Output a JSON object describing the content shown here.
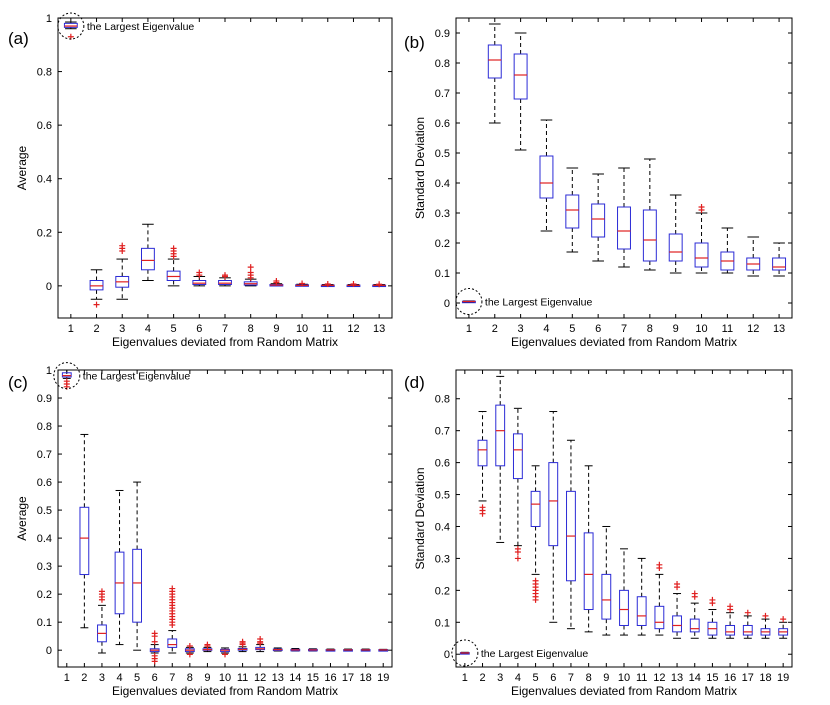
{
  "chart_data": [
    {
      "type": "box",
      "panel_label": "(a)",
      "xlabel": "Eigenvalues deviated from Random Matrix",
      "ylabel": "Average",
      "ylim": [
        -0.12,
        1.0
      ],
      "yticks": [
        0,
        0.2,
        0.4,
        0.6,
        0.8,
        1
      ],
      "ytick_labels": [
        "0",
        "0.2",
        "0.4",
        "0.6",
        "0.8",
        "1"
      ],
      "categories": [
        "1",
        "2",
        "3",
        "4",
        "5",
        "6",
        "7",
        "8",
        "9",
        "10",
        "11",
        "12",
        "13"
      ],
      "annotation": "the Largest Eigenvalue",
      "colors": {
        "box": "#2b2bd6",
        "median": "#e02020",
        "whisker": "#000000",
        "outlier": "#e02020"
      },
      "boxes": [
        {
          "cat": "1",
          "whislo": 0.96,
          "q1": 0.965,
          "med": 0.97,
          "q3": 0.98,
          "whishi": 0.985,
          "fliers": [
            0.93
          ]
        },
        {
          "cat": "2",
          "whislo": -0.05,
          "q1": -0.015,
          "med": 0.0,
          "q3": 0.02,
          "whishi": 0.06,
          "fliers": [
            -0.07
          ]
        },
        {
          "cat": "3",
          "whislo": -0.05,
          "q1": -0.005,
          "med": 0.015,
          "q3": 0.035,
          "whishi": 0.1,
          "fliers": [
            0.13,
            0.14,
            0.15
          ]
        },
        {
          "cat": "4",
          "whislo": 0.02,
          "q1": 0.06,
          "med": 0.095,
          "q3": 0.14,
          "whishi": 0.23,
          "fliers": []
        },
        {
          "cat": "5",
          "whislo": 0.0,
          "q1": 0.02,
          "med": 0.035,
          "q3": 0.055,
          "whishi": 0.1,
          "fliers": [
            0.11,
            0.12,
            0.13,
            0.14
          ]
        },
        {
          "cat": "6",
          "whislo": 0.0,
          "q1": 0.005,
          "med": 0.01,
          "q3": 0.02,
          "whishi": 0.035,
          "fliers": [
            0.04,
            0.05
          ]
        },
        {
          "cat": "7",
          "whislo": 0.0,
          "q1": 0.005,
          "med": 0.01,
          "q3": 0.02,
          "whishi": 0.03,
          "fliers": [
            0.035,
            0.04
          ]
        },
        {
          "cat": "8",
          "whislo": 0.0,
          "q1": 0.003,
          "med": 0.008,
          "q3": 0.015,
          "whishi": 0.025,
          "fliers": [
            0.03,
            0.04,
            0.05,
            0.07
          ]
        },
        {
          "cat": "9",
          "whislo": 0.0,
          "q1": 0.001,
          "med": 0.003,
          "q3": 0.005,
          "whishi": 0.008,
          "fliers": [
            0.012,
            0.018
          ]
        },
        {
          "cat": "10",
          "whislo": 0.0,
          "q1": 0.001,
          "med": 0.002,
          "q3": 0.004,
          "whishi": 0.006,
          "fliers": [
            0.009
          ]
        },
        {
          "cat": "11",
          "whislo": 0.0,
          "q1": 0.001,
          "med": 0.002,
          "q3": 0.003,
          "whishi": 0.005,
          "fliers": [
            0.007
          ]
        },
        {
          "cat": "12",
          "whislo": 0.0,
          "q1": 0.001,
          "med": 0.002,
          "q3": 0.003,
          "whishi": 0.005,
          "fliers": [
            0.007
          ]
        },
        {
          "cat": "13",
          "whislo": 0.0,
          "q1": 0.001,
          "med": 0.002,
          "q3": 0.003,
          "whishi": 0.005,
          "fliers": [
            0.006
          ]
        }
      ]
    },
    {
      "type": "box",
      "panel_label": "(b)",
      "xlabel": "Eigenvalues deviated from Random Matrix",
      "ylabel": "Standard Deviation",
      "ylim": [
        -0.05,
        0.95
      ],
      "yticks": [
        0,
        0.1,
        0.2,
        0.3,
        0.4,
        0.5,
        0.6,
        0.7,
        0.8,
        0.9
      ],
      "ytick_labels": [
        "0",
        "0.1",
        "0.2",
        "0.3",
        "0.4",
        "0.5",
        "0.6",
        "0.7",
        "0.8",
        "0.9"
      ],
      "categories": [
        "1",
        "2",
        "3",
        "4",
        "5",
        "6",
        "7",
        "8",
        "9",
        "10",
        "11",
        "12",
        "13"
      ],
      "annotation": "the Largest Eigenvalue",
      "colors": {
        "box": "#2b2bd6",
        "median": "#e02020",
        "whisker": "#000000",
        "outlier": "#e02020"
      },
      "boxes": [
        {
          "cat": "1",
          "whislo": 0.003,
          "q1": 0.004,
          "med": 0.005,
          "q3": 0.006,
          "whishi": 0.007,
          "fliers": []
        },
        {
          "cat": "2",
          "whislo": 0.6,
          "q1": 0.75,
          "med": 0.81,
          "q3": 0.86,
          "whishi": 0.93,
          "fliers": []
        },
        {
          "cat": "3",
          "whislo": 0.51,
          "q1": 0.68,
          "med": 0.76,
          "q3": 0.83,
          "whishi": 0.9,
          "fliers": []
        },
        {
          "cat": "4",
          "whislo": 0.24,
          "q1": 0.35,
          "med": 0.4,
          "q3": 0.49,
          "whishi": 0.61,
          "fliers": []
        },
        {
          "cat": "5",
          "whislo": 0.17,
          "q1": 0.25,
          "med": 0.31,
          "q3": 0.36,
          "whishi": 0.45,
          "fliers": []
        },
        {
          "cat": "6",
          "whislo": 0.14,
          "q1": 0.22,
          "med": 0.28,
          "q3": 0.33,
          "whishi": 0.43,
          "fliers": []
        },
        {
          "cat": "7",
          "whislo": 0.12,
          "q1": 0.18,
          "med": 0.24,
          "q3": 0.32,
          "whishi": 0.45,
          "fliers": []
        },
        {
          "cat": "8",
          "whislo": 0.11,
          "q1": 0.14,
          "med": 0.21,
          "q3": 0.31,
          "whishi": 0.48,
          "fliers": []
        },
        {
          "cat": "9",
          "whislo": 0.1,
          "q1": 0.14,
          "med": 0.17,
          "q3": 0.23,
          "whishi": 0.36,
          "fliers": []
        },
        {
          "cat": "10",
          "whislo": 0.1,
          "q1": 0.12,
          "med": 0.15,
          "q3": 0.2,
          "whishi": 0.3,
          "fliers": [
            0.31,
            0.32
          ]
        },
        {
          "cat": "11",
          "whislo": 0.1,
          "q1": 0.11,
          "med": 0.14,
          "q3": 0.17,
          "whishi": 0.25,
          "fliers": []
        },
        {
          "cat": "12",
          "whislo": 0.09,
          "q1": 0.11,
          "med": 0.13,
          "q3": 0.15,
          "whishi": 0.22,
          "fliers": []
        },
        {
          "cat": "13",
          "whislo": 0.09,
          "q1": 0.11,
          "med": 0.12,
          "q3": 0.15,
          "whishi": 0.2,
          "fliers": []
        }
      ]
    },
    {
      "type": "box",
      "panel_label": "(c)",
      "xlabel": "Eigenvalues deviated from Random Matrix",
      "ylabel": "Average",
      "ylim": [
        -0.06,
        1.0
      ],
      "yticks": [
        0,
        0.1,
        0.2,
        0.3,
        0.4,
        0.5,
        0.6,
        0.7,
        0.8,
        0.9,
        1
      ],
      "ytick_labels": [
        "0",
        "0.1",
        "0.2",
        "0.3",
        "0.4",
        "0.5",
        "0.6",
        "0.7",
        "0.8",
        "0.9",
        "1"
      ],
      "categories": [
        "1",
        "2",
        "3",
        "4",
        "5",
        "6",
        "7",
        "8",
        "9",
        "10",
        "11",
        "12",
        "13",
        "14",
        "15",
        "16",
        "17",
        "18",
        "19"
      ],
      "annotation": "the Largest Eigenvalue",
      "colors": {
        "box": "#2b2bd6",
        "median": "#e02020",
        "whisker": "#000000",
        "outlier": "#e02020"
      },
      "boxes": [
        {
          "cat": "1",
          "whislo": 0.97,
          "q1": 0.975,
          "med": 0.98,
          "q3": 0.99,
          "whishi": 1.0,
          "fliers": [
            0.94,
            0.95,
            0.96
          ]
        },
        {
          "cat": "2",
          "whislo": 0.08,
          "q1": 0.27,
          "med": 0.4,
          "q3": 0.51,
          "whishi": 0.77,
          "fliers": []
        },
        {
          "cat": "3",
          "whislo": -0.01,
          "q1": 0.03,
          "med": 0.06,
          "q3": 0.09,
          "whishi": 0.16,
          "fliers": [
            0.18,
            0.19,
            0.2,
            0.21
          ]
        },
        {
          "cat": "4",
          "whislo": 0.02,
          "q1": 0.13,
          "med": 0.24,
          "q3": 0.35,
          "whishi": 0.57,
          "fliers": []
        },
        {
          "cat": "5",
          "whislo": 0.0,
          "q1": 0.1,
          "med": 0.24,
          "q3": 0.36,
          "whishi": 0.6,
          "fliers": []
        },
        {
          "cat": "6",
          "whislo": -0.01,
          "q1": -0.005,
          "med": 0.0,
          "q3": 0.005,
          "whishi": 0.02,
          "fliers": [
            -0.04,
            -0.03,
            -0.02,
            0.03,
            0.05,
            0.06
          ]
        },
        {
          "cat": "7",
          "whislo": -0.01,
          "q1": 0.01,
          "med": 0.02,
          "q3": 0.04,
          "whishi": 0.07,
          "fliers": [
            0.09,
            0.1,
            0.11,
            0.12,
            0.13,
            0.14,
            0.15,
            0.16,
            0.17,
            0.18,
            0.19,
            0.2,
            0.21,
            0.22
          ]
        },
        {
          "cat": "8",
          "whislo": -0.01,
          "q1": -0.005,
          "med": 0.0,
          "q3": 0.005,
          "whishi": 0.01,
          "fliers": [
            0.015,
            -0.015
          ]
        },
        {
          "cat": "9",
          "whislo": -0.005,
          "q1": 0.0,
          "med": 0.002,
          "q3": 0.005,
          "whishi": 0.01,
          "fliers": [
            0.015,
            0.02
          ]
        },
        {
          "cat": "10",
          "whislo": -0.01,
          "q1": -0.005,
          "med": 0.0,
          "q3": 0.003,
          "whishi": 0.008,
          "fliers": [
            -0.015
          ]
        },
        {
          "cat": "11",
          "whislo": -0.005,
          "q1": 0.0,
          "med": 0.003,
          "q3": 0.006,
          "whishi": 0.012,
          "fliers": [
            0.02,
            0.025,
            0.03
          ]
        },
        {
          "cat": "12",
          "whislo": -0.005,
          "q1": 0.002,
          "med": 0.005,
          "q3": 0.01,
          "whishi": 0.02,
          "fliers": [
            0.025,
            0.03,
            0.04
          ]
        },
        {
          "cat": "13",
          "whislo": -0.003,
          "q1": 0.0,
          "med": 0.002,
          "q3": 0.004,
          "whishi": 0.008,
          "fliers": []
        },
        {
          "cat": "14",
          "whislo": -0.003,
          "q1": 0.0,
          "med": 0.001,
          "q3": 0.003,
          "whishi": 0.006,
          "fliers": []
        },
        {
          "cat": "15",
          "whislo": -0.003,
          "q1": 0.0,
          "med": 0.001,
          "q3": 0.003,
          "whishi": 0.005,
          "fliers": []
        },
        {
          "cat": "16",
          "whislo": -0.002,
          "q1": 0.0,
          "med": 0.001,
          "q3": 0.002,
          "whishi": 0.004,
          "fliers": []
        },
        {
          "cat": "17",
          "whislo": -0.002,
          "q1": 0.0,
          "med": 0.001,
          "q3": 0.002,
          "whishi": 0.004,
          "fliers": []
        },
        {
          "cat": "18",
          "whislo": -0.002,
          "q1": 0.0,
          "med": 0.001,
          "q3": 0.002,
          "whishi": 0.004,
          "fliers": []
        },
        {
          "cat": "19",
          "whislo": -0.002,
          "q1": 0.0,
          "med": 0.001,
          "q3": 0.002,
          "whishi": 0.003,
          "fliers": []
        }
      ]
    },
    {
      "type": "box",
      "panel_label": "(d)",
      "xlabel": "Eigenvalues deviated from Random Matrix",
      "ylabel": "Standard Deviation",
      "ylim": [
        -0.04,
        0.89
      ],
      "yticks": [
        0,
        0.1,
        0.2,
        0.3,
        0.4,
        0.5,
        0.6,
        0.7,
        0.8
      ],
      "ytick_labels": [
        "0",
        "0.1",
        "0.2",
        "0.3",
        "0.4",
        "0.5",
        "0.6",
        "0.7",
        "0.8"
      ],
      "categories": [
        "1",
        "2",
        "3",
        "4",
        "5",
        "6",
        "7",
        "8",
        "9",
        "10",
        "11",
        "12",
        "13",
        "14",
        "15",
        "16",
        "17",
        "18",
        "19"
      ],
      "annotation": "the Largest Eigenvalue",
      "colors": {
        "box": "#2b2bd6",
        "median": "#e02020",
        "whisker": "#000000",
        "outlier": "#e02020"
      },
      "boxes": [
        {
          "cat": "1",
          "whislo": 0.002,
          "q1": 0.003,
          "med": 0.004,
          "q3": 0.005,
          "whishi": 0.006,
          "fliers": []
        },
        {
          "cat": "2",
          "whislo": 0.48,
          "q1": 0.59,
          "med": 0.64,
          "q3": 0.67,
          "whishi": 0.76,
          "fliers": [
            0.44,
            0.45,
            0.46
          ]
        },
        {
          "cat": "3",
          "whislo": 0.35,
          "q1": 0.59,
          "med": 0.7,
          "q3": 0.78,
          "whishi": 0.87,
          "fliers": []
        },
        {
          "cat": "4",
          "whislo": 0.34,
          "q1": 0.55,
          "med": 0.64,
          "q3": 0.69,
          "whishi": 0.77,
          "fliers": [
            0.3,
            0.32,
            0.33
          ]
        },
        {
          "cat": "5",
          "whislo": 0.25,
          "q1": 0.4,
          "med": 0.47,
          "q3": 0.51,
          "whishi": 0.59,
          "fliers": [
            0.17,
            0.18,
            0.19,
            0.2,
            0.21,
            0.22,
            0.23
          ]
        },
        {
          "cat": "6",
          "whislo": 0.1,
          "q1": 0.34,
          "med": 0.48,
          "q3": 0.6,
          "whishi": 0.76,
          "fliers": []
        },
        {
          "cat": "7",
          "whislo": 0.08,
          "q1": 0.23,
          "med": 0.37,
          "q3": 0.51,
          "whishi": 0.67,
          "fliers": []
        },
        {
          "cat": "8",
          "whislo": 0.07,
          "q1": 0.14,
          "med": 0.25,
          "q3": 0.38,
          "whishi": 0.59,
          "fliers": []
        },
        {
          "cat": "9",
          "whislo": 0.06,
          "q1": 0.11,
          "med": 0.17,
          "q3": 0.25,
          "whishi": 0.4,
          "fliers": []
        },
        {
          "cat": "10",
          "whislo": 0.06,
          "q1": 0.09,
          "med": 0.14,
          "q3": 0.2,
          "whishi": 0.33,
          "fliers": []
        },
        {
          "cat": "11",
          "whislo": 0.06,
          "q1": 0.09,
          "med": 0.12,
          "q3": 0.18,
          "whishi": 0.3,
          "fliers": []
        },
        {
          "cat": "12",
          "whislo": 0.06,
          "q1": 0.08,
          "med": 0.1,
          "q3": 0.15,
          "whishi": 0.25,
          "fliers": [
            0.27,
            0.28
          ]
        },
        {
          "cat": "13",
          "whislo": 0.05,
          "q1": 0.07,
          "med": 0.09,
          "q3": 0.12,
          "whishi": 0.19,
          "fliers": [
            0.21,
            0.22
          ]
        },
        {
          "cat": "14",
          "whislo": 0.05,
          "q1": 0.07,
          "med": 0.08,
          "q3": 0.11,
          "whishi": 0.16,
          "fliers": [
            0.18,
            0.19
          ]
        },
        {
          "cat": "15",
          "whislo": 0.05,
          "q1": 0.06,
          "med": 0.08,
          "q3": 0.1,
          "whishi": 0.14,
          "fliers": [
            0.16,
            0.17
          ]
        },
        {
          "cat": "16",
          "whislo": 0.05,
          "q1": 0.06,
          "med": 0.07,
          "q3": 0.09,
          "whishi": 0.13,
          "fliers": [
            0.14,
            0.15
          ]
        },
        {
          "cat": "17",
          "whislo": 0.05,
          "q1": 0.06,
          "med": 0.07,
          "q3": 0.09,
          "whishi": 0.12,
          "fliers": [
            0.13
          ]
        },
        {
          "cat": "18",
          "whislo": 0.05,
          "q1": 0.06,
          "med": 0.07,
          "q3": 0.08,
          "whishi": 0.11,
          "fliers": [
            0.12
          ]
        },
        {
          "cat": "19",
          "whislo": 0.05,
          "q1": 0.06,
          "med": 0.07,
          "q3": 0.08,
          "whishi": 0.1,
          "fliers": [
            0.11
          ]
        }
      ]
    }
  ]
}
